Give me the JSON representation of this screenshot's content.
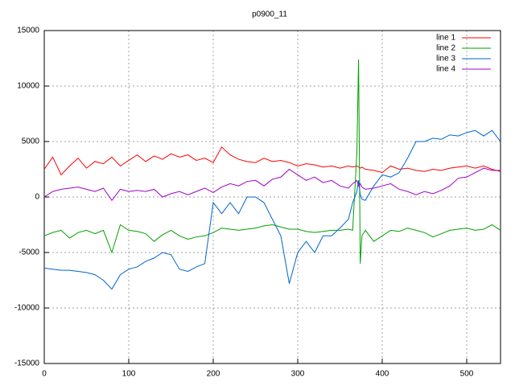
{
  "chart_data": {
    "type": "line",
    "title": "p0900_11",
    "x": [
      0,
      10,
      20,
      30,
      40,
      50,
      60,
      70,
      80,
      90,
      100,
      110,
      120,
      130,
      140,
      150,
      160,
      170,
      180,
      190,
      200,
      210,
      220,
      230,
      240,
      250,
      260,
      270,
      280,
      290,
      300,
      310,
      320,
      330,
      340,
      350,
      360,
      365,
      370,
      372,
      374,
      376,
      380,
      390,
      400,
      410,
      420,
      430,
      440,
      450,
      460,
      470,
      480,
      490,
      500,
      510,
      520,
      530,
      540
    ],
    "series": [
      {
        "name": "line 1",
        "color": "#ff0000",
        "values": [
          2500,
          3600,
          2000,
          2800,
          3500,
          2600,
          3200,
          3000,
          3600,
          2800,
          3300,
          3800,
          3200,
          3700,
          3400,
          3900,
          3600,
          3800,
          3300,
          3500,
          3100,
          4500,
          3800,
          3400,
          3200,
          3100,
          3500,
          3200,
          3300,
          3100,
          2800,
          3000,
          2900,
          2700,
          2800,
          2600,
          2800,
          2700,
          2800,
          2700,
          2600,
          2700,
          2500,
          2400,
          2200,
          2800,
          2500,
          2600,
          2400,
          2300,
          2500,
          2400,
          2600,
          2700,
          2800,
          2600,
          2800,
          2500,
          2300
        ]
      },
      {
        "name": "line 2",
        "color": "#00a000",
        "values": [
          -3500,
          -3200,
          -3000,
          -3700,
          -3200,
          -3000,
          -3300,
          -3000,
          -5000,
          -2500,
          -3000,
          -3100,
          -3300,
          -4000,
          -3400,
          -3000,
          -3500,
          -3800,
          -3600,
          -3500,
          -3200,
          -2800,
          -2900,
          -3000,
          -2900,
          -2800,
          -2600,
          -2500,
          -2700,
          -2900,
          -2900,
          -3100,
          -3200,
          -3100,
          -3000,
          -3000,
          -2900,
          -3000,
          4000,
          12400,
          -6000,
          -3500,
          -3000,
          -4000,
          -3500,
          -3000,
          -3100,
          -2800,
          -3000,
          -3200,
          -3600,
          -3300,
          -3000,
          -2900,
          -2800,
          -3000,
          -2900,
          -2500,
          -3000
        ]
      },
      {
        "name": "line 3",
        "color": "#0066cc",
        "values": [
          -6400,
          -6500,
          -6600,
          -6600,
          -6700,
          -6800,
          -7000,
          -7500,
          -8300,
          -7000,
          -6500,
          -6300,
          -5800,
          -5500,
          -5000,
          -5200,
          -6500,
          -6700,
          -6300,
          -6000,
          -500,
          -1500,
          -500,
          -1500,
          0,
          0,
          -500,
          -2000,
          -3500,
          -7800,
          -5000,
          -4000,
          -5000,
          -3500,
          -3500,
          -2800,
          -2000,
          -500,
          500,
          1500,
          200,
          -200,
          -300,
          1000,
          2000,
          1800,
          2200,
          3500,
          5000,
          5000,
          5300,
          5200,
          5600,
          5500,
          5800,
          6000,
          5500,
          6000,
          5000
        ]
      },
      {
        "name": "line 4",
        "color": "#a000cc",
        "values": [
          0,
          500,
          700,
          800,
          900,
          700,
          500,
          800,
          -300,
          700,
          500,
          600,
          500,
          700,
          0,
          300,
          500,
          200,
          500,
          800,
          400,
          900,
          1200,
          1000,
          1400,
          1500,
          1000,
          1600,
          1800,
          2500,
          2000,
          1500,
          1800,
          1300,
          1500,
          1000,
          800,
          1200,
          1500,
          1000,
          1200,
          900,
          700,
          800,
          1000,
          1200,
          700,
          500,
          200,
          500,
          300,
          600,
          1000,
          1700,
          1800,
          2200,
          2600,
          2400,
          2400
        ]
      }
    ],
    "xlim": [
      0,
      540
    ],
    "xticks": [
      0,
      100,
      200,
      300,
      400,
      500
    ],
    "ylim": [
      -15000,
      15000
    ],
    "yticks": [
      -15000,
      -10000,
      -5000,
      0,
      5000,
      10000,
      15000
    ],
    "grid": true,
    "legend": "top-right"
  }
}
